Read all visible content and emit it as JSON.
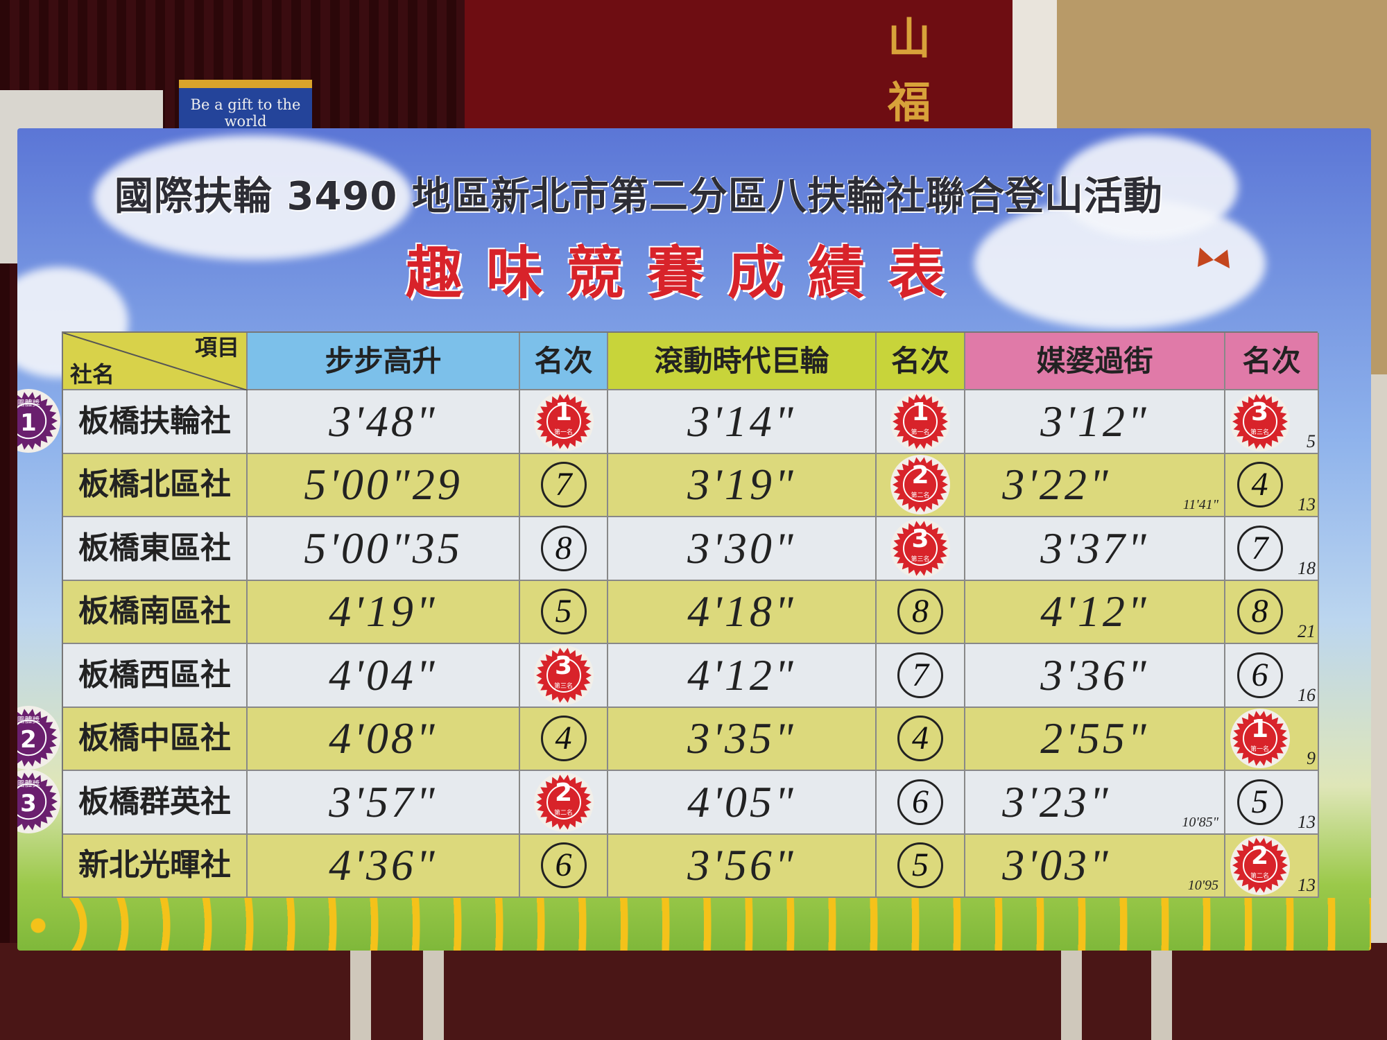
{
  "background": {
    "banner_text": "Be a gift to the world",
    "red_banner_chars": [
      "山",
      "福"
    ]
  },
  "board": {
    "title": "國際扶輪 3490 地區新北市第二分區八扶輪社聯合登山活動",
    "subtitle": "趣味競賽成績表",
    "corner": {
      "item_label": "項目",
      "club_label": "社名"
    },
    "events": [
      {
        "name": "步步高升",
        "rank_label": "名次",
        "color": "#7cc0ea"
      },
      {
        "name": "滾動時代巨輪",
        "rank_label": "名次",
        "color": "#c8d43a"
      },
      {
        "name": "媒婆過街",
        "rank_label": "名次",
        "color": "#e07aa8"
      }
    ],
    "sticker_labels": {
      "1": "第一名",
      "2": "第二名",
      "3": "第三名"
    },
    "rows": [
      {
        "club": "板橋扶輪社",
        "results": [
          {
            "time": "3'48\"",
            "rank": "1",
            "sticker": true
          },
          {
            "time": "3'14\"",
            "rank": "1",
            "sticker": true
          },
          {
            "time": "3'12\"",
            "rank": "3",
            "sticker": true,
            "total": "5"
          }
        ]
      },
      {
        "club": "板橋北區社",
        "results": [
          {
            "time": "5'00\"29",
            "rank": "7"
          },
          {
            "time": "3'19\"",
            "rank": "2",
            "sticker": true
          },
          {
            "time": "3'22\"",
            "rank": "4",
            "total": "13",
            "note": "11'41\""
          }
        ]
      },
      {
        "club": "板橋東區社",
        "results": [
          {
            "time": "5'00\"35",
            "rank": "8"
          },
          {
            "time": "3'30\"",
            "rank": "3",
            "sticker": true
          },
          {
            "time": "3'37\"",
            "rank": "7",
            "total": "18"
          }
        ]
      },
      {
        "club": "板橋南區社",
        "results": [
          {
            "time": "4'19\"",
            "rank": "5"
          },
          {
            "time": "4'18\"",
            "rank": "8"
          },
          {
            "time": "4'12\"",
            "rank": "8",
            "total": "21"
          }
        ]
      },
      {
        "club": "板橋西區社",
        "results": [
          {
            "time": "4'04\"",
            "rank": "3",
            "sticker": true
          },
          {
            "time": "4'12\"",
            "rank": "7"
          },
          {
            "time": "3'36\"",
            "rank": "6",
            "total": "16"
          }
        ]
      },
      {
        "club": "板橋中區社",
        "results": [
          {
            "time": "4'08\"",
            "rank": "4"
          },
          {
            "time": "3'35\"",
            "rank": "4"
          },
          {
            "time": "2'55\"",
            "rank": "1",
            "sticker": true,
            "total": "9"
          }
        ]
      },
      {
        "club": "板橋群英社",
        "results": [
          {
            "time": "3'57\"",
            "rank": "2",
            "sticker": true
          },
          {
            "time": "4'05\"",
            "rank": "6"
          },
          {
            "time": "3'23\"",
            "rank": "5",
            "total": "13",
            "note": "10'85\""
          }
        ]
      },
      {
        "club": "新北光暉社",
        "results": [
          {
            "time": "4'36\"",
            "rank": "6"
          },
          {
            "time": "3'56\"",
            "rank": "5"
          },
          {
            "time": "3'03\"",
            "rank": "2",
            "sticker": true,
            "total": "13",
            "note": "10'95"
          }
        ]
      }
    ],
    "team_awards": [
      {
        "label": "團體獎",
        "place": "1",
        "row": 0
      },
      {
        "label": "團體獎",
        "place": "2",
        "row": 5
      },
      {
        "label": "團體獎",
        "place": "3",
        "row": 6
      }
    ],
    "colors": {
      "sticker_red": "#d8232a",
      "team_purple": "#6a1f6e",
      "row_light": "#e6eaee",
      "row_yellow": "#dcd97c",
      "corner": "#d8d24a",
      "title_red": "#d8232a"
    }
  }
}
